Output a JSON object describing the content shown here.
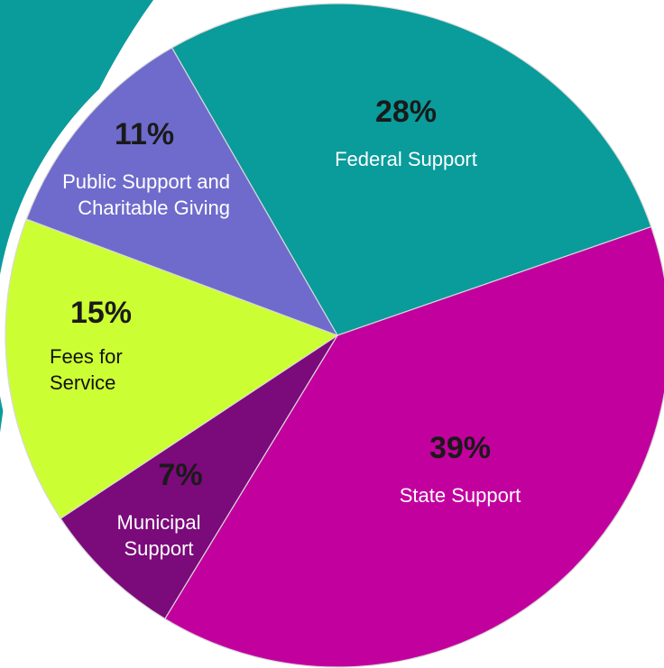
{
  "chart_data": {
    "type": "pie",
    "categories": [
      "Federal Support",
      "State Support",
      "Municipal Support",
      "Fees for Service",
      "Public Support and Charitable Giving"
    ],
    "values": [
      28,
      39,
      7,
      15,
      11
    ],
    "value_labels": [
      "28%",
      "39%",
      "7%",
      "15%",
      "11%"
    ],
    "colors": [
      "#0a9b9b",
      "#c2009e",
      "#7b0a7b",
      "#ccff33",
      "#6f6bcc"
    ]
  }
}
